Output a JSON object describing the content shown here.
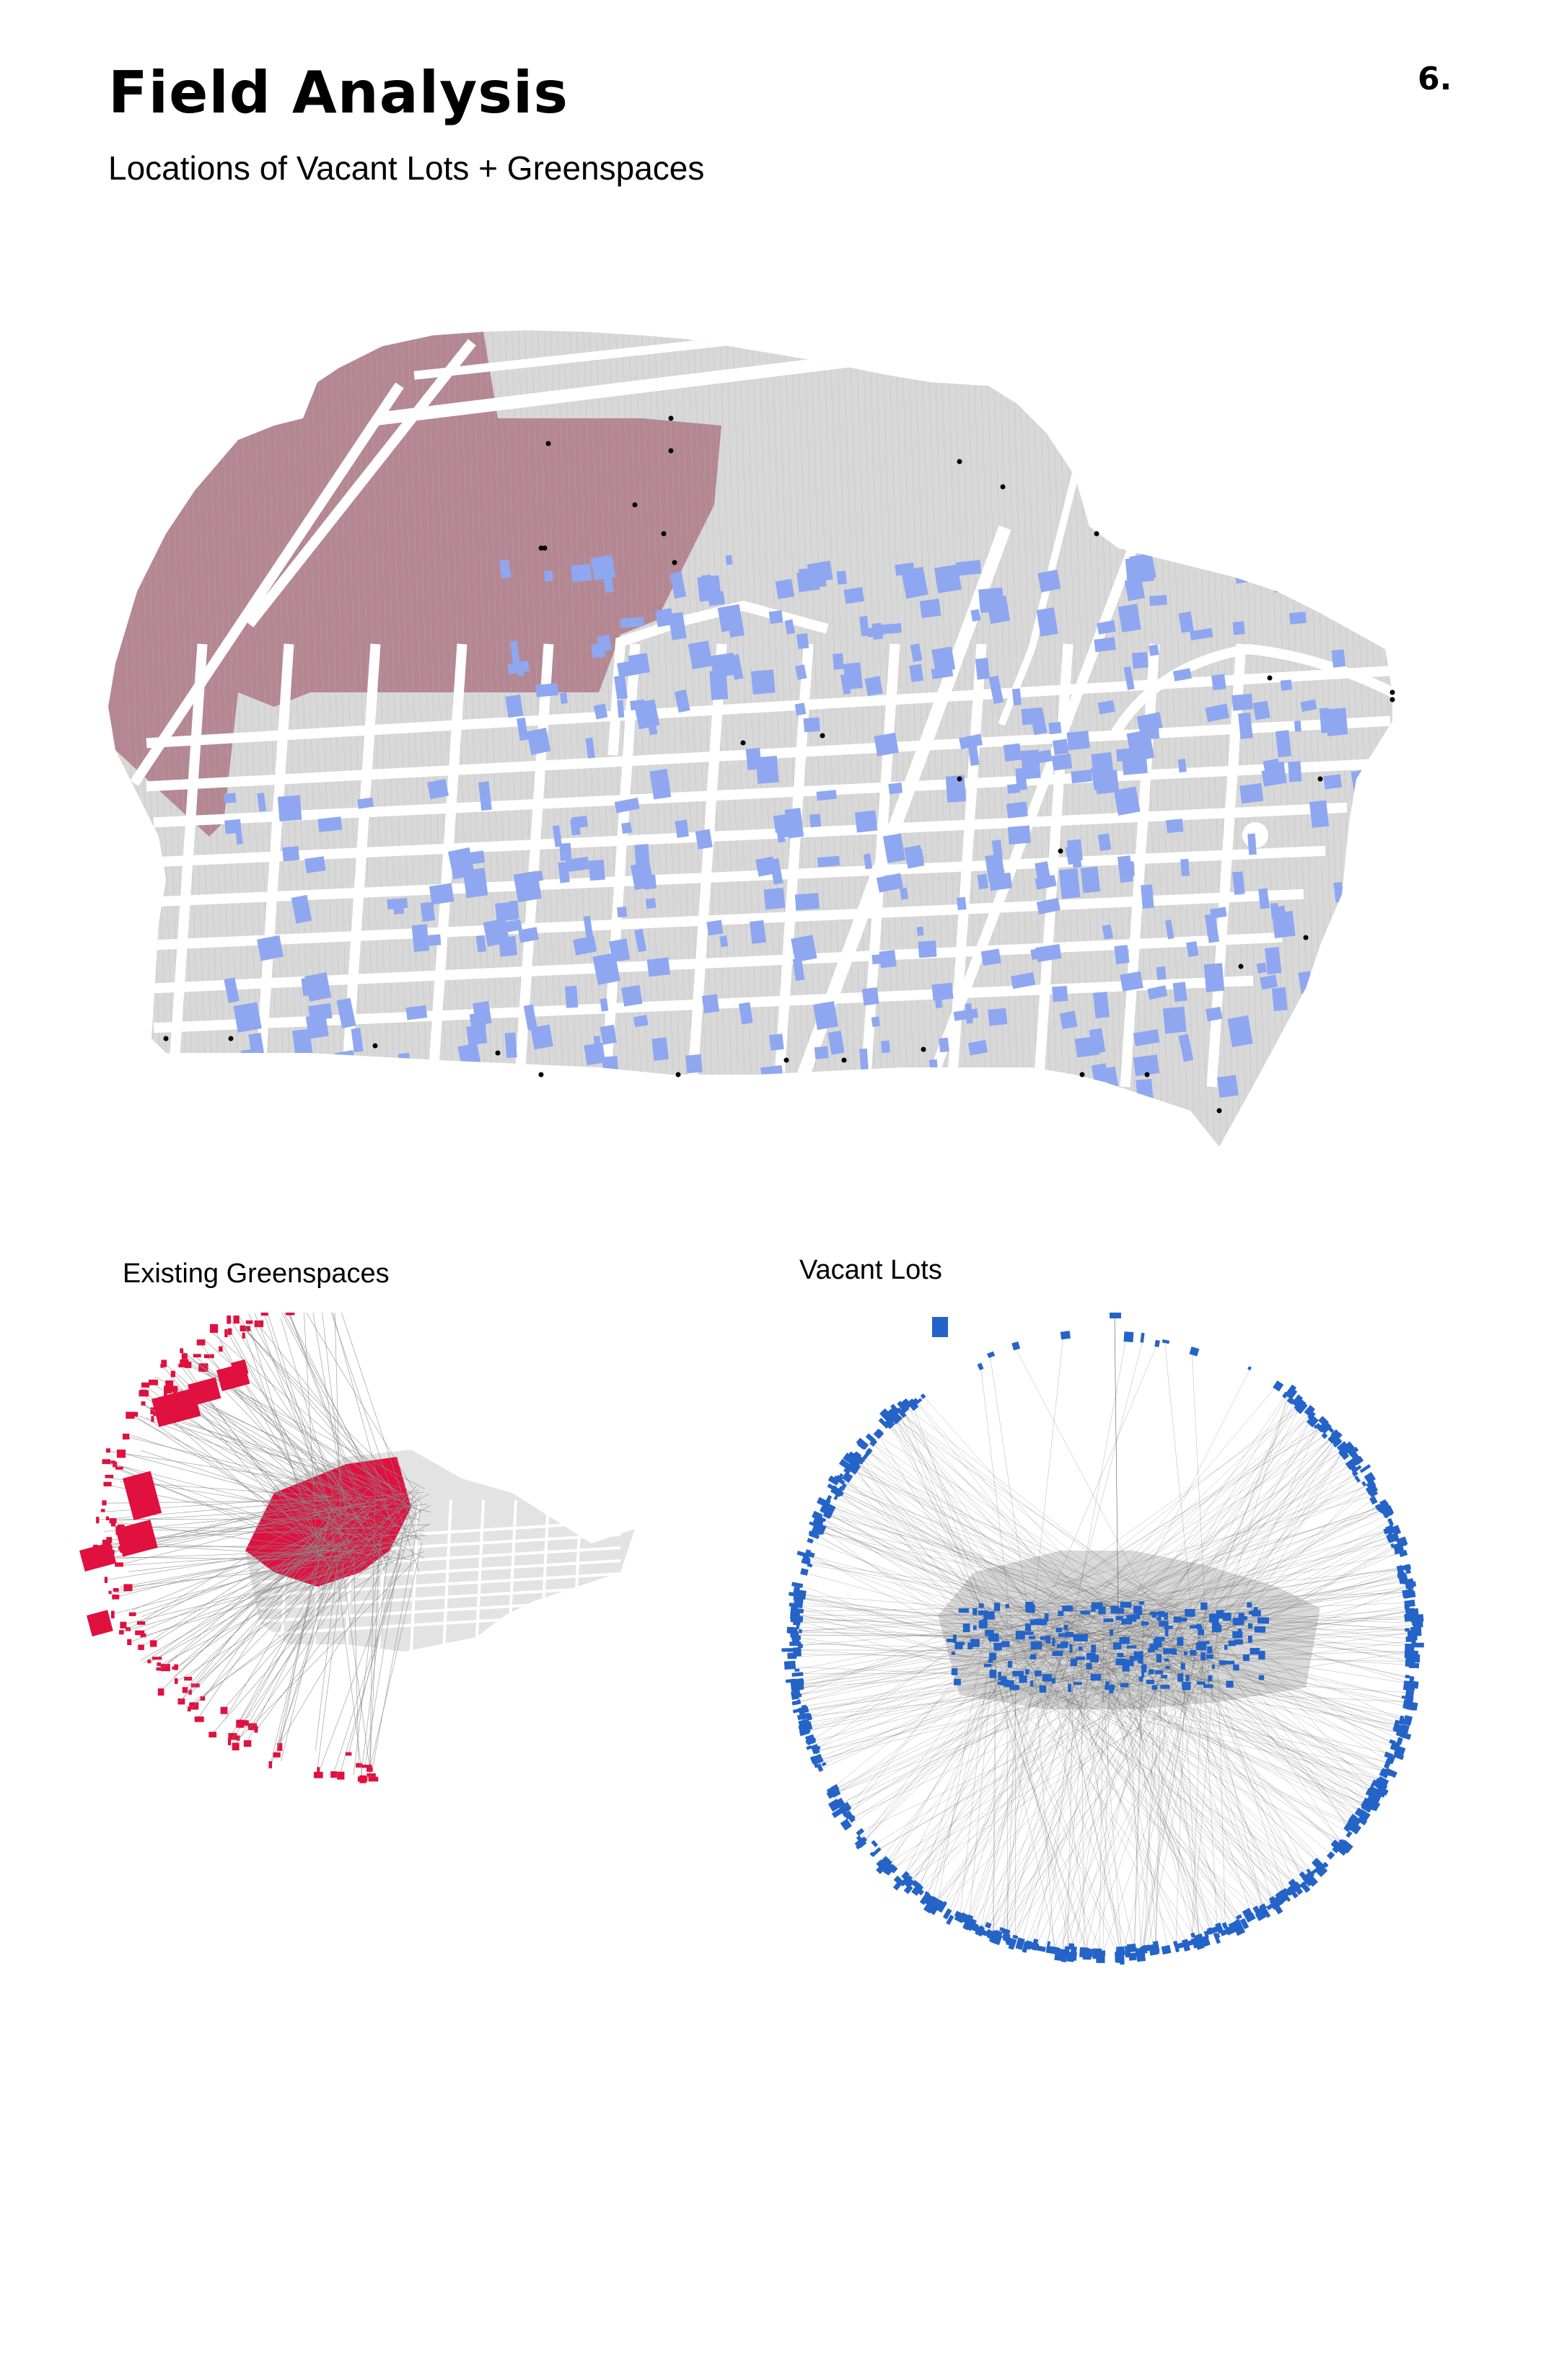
{
  "header": {
    "title": "Field Analysis",
    "page_number": "6.",
    "subtitle": "Locations of Vacant Lots + Greenspaces"
  },
  "captions": {
    "greenspaces": "Existing Greenspaces",
    "vacant": "Vacant Lots"
  },
  "colors": {
    "parcel": "#d8d8d8",
    "parcel_line": "#b4b4b4",
    "street": "#ffffff",
    "greenspace_main": "#b58792",
    "vacant_main": "#8ea7f0",
    "greenspace_exploded": "#e0103f",
    "vacant_exploded": "#2463c8",
    "leader_line": "#8a8a8a",
    "node": "#000000"
  },
  "map_layers": [
    "parcels",
    "streets",
    "vacant-lots",
    "greenspaces",
    "street-nodes"
  ]
}
